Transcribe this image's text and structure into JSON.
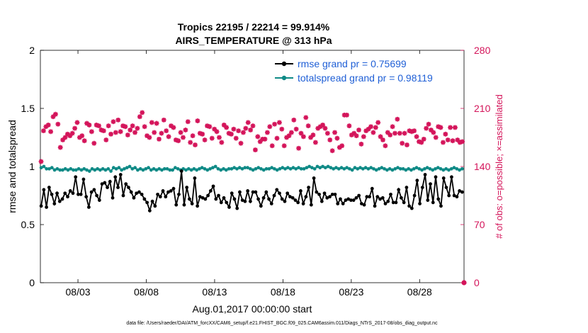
{
  "chart_data": {
    "type": "line",
    "title_line1": "Tropics 22195 / 22214 = 99.914%",
    "title_line2": "AIRS_TEMPERATURE @ 313 hPa",
    "xlabel": "Aug.01,2017 00:00:00 start",
    "ylabel_left": "rmse and totalspread",
    "ylabel_right": "# of obs: o=possible; ×=assimilated",
    "ylim_left": [
      0,
      2
    ],
    "ylim_right": [
      0,
      280
    ],
    "xlim": [
      0,
      31
    ],
    "left_ticks": [
      "0",
      "0.5",
      "1",
      "1.5",
      "2"
    ],
    "left_tick_values": [
      0,
      0.5,
      1,
      1.5,
      2
    ],
    "right_ticks": [
      "0",
      "70",
      "140",
      "210",
      "280"
    ],
    "right_tick_values": [
      0,
      70,
      140,
      210,
      280
    ],
    "x_tick_labels": [
      "08/03",
      "08/08",
      "08/13",
      "08/18",
      "08/23",
      "08/28"
    ],
    "x_tick_values": [
      2.75,
      7.75,
      12.75,
      17.75,
      22.75,
      27.75
    ],
    "footer": "data file: /Users/raeder/DAI/ATM_forcXX/CAM6_setup/f.e21.FHIST_BGC.f09_025.CAM6assim.011/Diags_NTrS_2017-08/obs_diag_output.nc",
    "colors": {
      "rmse": "#000000",
      "spread": "#0f8a86",
      "obs": "#d4145a",
      "legend_text": "#1f5fd6",
      "axis": "#000000"
    },
    "legend": {
      "rmse_label": "rmse grand pr = 0.75699",
      "spread_label": "totalspread grand pr = 0.98119"
    },
    "series": [
      {
        "name": "rmse",
        "axis": "left",
        "values": [
          0.66,
          0.8,
          0.65,
          0.82,
          0.76,
          0.68,
          0.77,
          0.7,
          0.72,
          0.77,
          0.74,
          0.79,
          0.77,
          0.91,
          0.76,
          0.76,
          0.89,
          0.74,
          0.65,
          0.78,
          0.8,
          0.75,
          0.71,
          0.85,
          0.86,
          0.82,
          0.87,
          0.73,
          0.91,
          0.82,
          0.93,
          0.75,
          0.85,
          0.82,
          0.78,
          0.73,
          0.77,
          0.78,
          0.76,
          0.72,
          0.69,
          0.62,
          0.7,
          0.66,
          0.76,
          0.74,
          0.79,
          0.74,
          0.78,
          0.79,
          0.81,
          0.67,
          0.76,
          0.96,
          0.67,
          0.82,
          0.72,
          0.68,
          0.9,
          0.66,
          0.74,
          0.73,
          0.72,
          0.75,
          0.79,
          0.83,
          0.72,
          0.75,
          0.69,
          0.73,
          0.69,
          0.65,
          0.77,
          0.72,
          0.64,
          0.78,
          0.71,
          0.7,
          0.79,
          0.7,
          0.78,
          0.78,
          0.72,
          0.66,
          0.73,
          0.78,
          0.72,
          0.68,
          0.75,
          0.8,
          0.77,
          0.72,
          0.7,
          0.77,
          0.74,
          0.73,
          0.71,
          0.69,
          0.79,
          0.68,
          0.74,
          0.82,
          0.67,
          0.9,
          0.78,
          0.76,
          0.7,
          0.77,
          0.73,
          0.74,
          0.76,
          0.76,
          0.68,
          0.72,
          0.68,
          0.71,
          0.72,
          0.71,
          0.71,
          0.73,
          0.75,
          0.68,
          0.67,
          0.74,
          0.74,
          0.81,
          0.66,
          0.74,
          0.72,
          0.73,
          0.68,
          0.7,
          0.76,
          0.69,
          0.69,
          0.8,
          0.73,
          0.69,
          0.82,
          0.66,
          0.64,
          0.75,
          0.88,
          0.68,
          0.82,
          0.93,
          0.71,
          0.85,
          0.69,
          0.91,
          0.72,
          0.66,
          0.9,
          0.82,
          0.75,
          0.91,
          0.75,
          0.74,
          0.79,
          0.78
        ]
      },
      {
        "name": "totalspread",
        "axis": "left",
        "values": [
          0.99,
          1.0,
          0.98,
          0.98,
          0.99,
          0.97,
          0.98,
          0.97,
          0.97,
          0.98,
          0.97,
          0.98,
          0.97,
          0.97,
          0.98,
          0.97,
          0.98,
          0.97,
          0.96,
          0.98,
          0.97,
          0.98,
          0.97,
          0.98,
          0.97,
          0.98,
          0.96,
          0.99,
          0.98,
          0.99,
          0.97,
          0.98,
          0.99,
          1.0,
          0.98,
          0.99,
          0.97,
          0.98,
          0.97,
          0.98,
          0.99,
          0.97,
          0.98,
          0.97,
          0.98,
          0.97,
          0.98,
          0.98,
          0.97,
          0.97,
          0.99,
          0.98,
          0.97,
          0.98,
          0.97,
          0.98,
          0.97,
          0.98,
          0.97,
          0.98,
          0.99,
          0.98,
          0.97,
          0.98,
          0.99,
          1.0,
          0.98,
          0.97,
          0.98,
          0.97,
          0.98,
          0.98,
          0.99,
          0.98,
          0.99,
          0.98,
          0.99,
          0.99,
          0.98,
          0.97,
          0.98,
          0.99,
          0.98,
          0.97,
          0.98,
          0.98,
          0.99,
          0.98,
          0.97,
          0.98,
          0.99,
          0.98,
          0.99,
          0.98,
          0.99,
          0.98,
          0.99,
          0.98,
          0.98,
          0.99,
          1.0,
          0.99,
          0.98,
          1.0,
          0.99,
          1.0,
          0.99,
          1.0,
          0.99,
          0.98,
          0.99,
          0.98,
          0.99,
          0.98,
          0.99,
          0.98,
          0.97,
          0.99,
          0.98,
          0.99,
          0.98,
          0.99,
          0.98,
          0.99,
          0.98,
          0.97,
          0.98,
          0.99,
          0.98,
          0.97,
          0.98,
          0.97,
          0.98,
          0.99,
          0.98,
          0.98,
          0.97,
          0.98,
          0.97,
          0.98,
          0.99,
          0.98,
          0.97,
          0.98,
          0.99,
          0.98,
          0.97,
          0.98,
          0.99,
          0.98,
          0.97,
          0.98,
          0.97,
          0.98,
          0.99,
          0.98,
          0.97,
          0.98
        ]
      },
      {
        "name": "obs_assimilated",
        "axis": "right",
        "values": [
          146,
          183,
          188,
          190,
          182,
          200,
          203,
          191,
          163,
          172,
          175,
          179,
          177,
          180,
          186,
          193,
          175,
          177,
          171,
          192,
          190,
          182,
          168,
          190,
          189,
          184,
          183,
          172,
          189,
          179,
          194,
          181,
          196,
          182,
          189,
          188,
          178,
          184,
          189,
          181,
          186,
          200,
          205,
          188,
          177,
          175,
          193,
          181,
          192,
          173,
          180,
          196,
          183,
          176,
          189,
          187,
          172,
          171,
          181,
          175,
          184,
          194,
          169,
          177,
          166,
          195,
          180,
          179,
          172,
          189,
          188,
          174,
          185,
          182,
          175,
          169,
          190,
          187,
          180,
          179,
          185,
          174,
          183,
          168,
          181,
          186,
          193,
          184,
          189,
          160,
          176,
          170,
          173,
          173,
          181,
          188,
          165,
          191,
          174,
          193,
          185,
          165,
          175,
          177,
          181,
          196,
          185,
          162,
          180,
          176,
          199,
          189,
          175,
          178,
          169,
          186,
          188,
          190,
          186,
          180,
          172,
          159,
          181,
          174,
          163,
          165,
          202,
          202,
          189,
          178,
          180,
          177,
          184,
          167,
          176,
          183,
          185,
          188,
          181,
          187,
          193,
          176,
          172,
          165,
          181,
          178,
          188,
          180,
          197,
          180,
          168,
          180,
          166,
          183,
          182,
          183,
          176,
          170,
          169,
          173,
          186,
          191,
          184,
          181,
          175,
          188,
          187,
          169,
          179,
          172,
          187,
          171,
          187,
          172,
          169,
          170
        ]
      },
      {
        "name": "obs_possible",
        "axis": "right",
        "values": [
          0
        ]
      }
    ]
  }
}
